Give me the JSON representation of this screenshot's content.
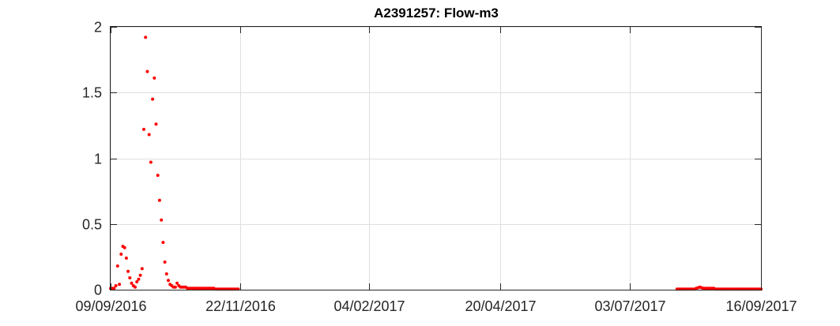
{
  "chart_data": {
    "type": "scatter",
    "title": "A2391257: Flow-m3",
    "xlabel": "",
    "ylabel": "",
    "x_axis_type": "date",
    "xlim": [
      "2016-09-09",
      "2017-09-16"
    ],
    "ylim": [
      0,
      2
    ],
    "x_ticks": [
      "09/09/2016",
      "22/11/2016",
      "04/02/2017",
      "20/04/2017",
      "03/07/2017",
      "16/09/2017"
    ],
    "x_tick_dates": [
      "2016-09-09",
      "2016-11-22",
      "2017-02-04",
      "2017-04-20",
      "2017-07-03",
      "2017-09-16"
    ],
    "y_ticks": [
      0,
      0.5,
      1,
      1.5,
      2
    ],
    "y_tick_labels": [
      "0",
      "0.5",
      "1",
      "1.5",
      "2"
    ],
    "grid": true,
    "marker_color": "#ff0000",
    "series": [
      {
        "points": [
          [
            "2016-09-09",
            0.01
          ],
          [
            "2016-09-10",
            0.01
          ],
          [
            "2016-09-11",
            0.01
          ],
          [
            "2016-09-12",
            0.03
          ],
          [
            "2016-09-13",
            0.18
          ],
          [
            "2016-09-14",
            0.04
          ],
          [
            "2016-09-15",
            0.27
          ],
          [
            "2016-09-16",
            0.33
          ],
          [
            "2016-09-17",
            0.32
          ],
          [
            "2016-09-18",
            0.24
          ],
          [
            "2016-09-19",
            0.14
          ],
          [
            "2016-09-20",
            0.09
          ],
          [
            "2016-09-21",
            0.05
          ],
          [
            "2016-09-22",
            0.03
          ],
          [
            "2016-09-23",
            0.02
          ],
          [
            "2016-09-24",
            0.06
          ],
          [
            "2016-09-25",
            0.08
          ],
          [
            "2016-09-26",
            0.11
          ],
          [
            "2016-09-27",
            0.16
          ],
          [
            "2016-09-28",
            1.22
          ],
          [
            "2016-09-29",
            1.92
          ],
          [
            "2016-09-30",
            1.66
          ],
          [
            "2016-10-01",
            1.18
          ],
          [
            "2016-10-02",
            0.97
          ],
          [
            "2016-10-03",
            1.45
          ],
          [
            "2016-10-04",
            1.61
          ],
          [
            "2016-10-05",
            1.26
          ],
          [
            "2016-10-06",
            0.87
          ],
          [
            "2016-10-07",
            0.68
          ],
          [
            "2016-10-08",
            0.53
          ],
          [
            "2016-10-09",
            0.36
          ],
          [
            "2016-10-10",
            0.21
          ],
          [
            "2016-10-11",
            0.12
          ],
          [
            "2016-10-12",
            0.07
          ],
          [
            "2016-10-13",
            0.04
          ],
          [
            "2016-10-14",
            0.03
          ],
          [
            "2016-10-15",
            0.02
          ],
          [
            "2016-10-16",
            0.02
          ],
          [
            "2016-10-17",
            0.05
          ],
          [
            "2016-10-18",
            0.03
          ],
          [
            "2016-10-19",
            0.02
          ],
          [
            "2016-10-20",
            0.02
          ],
          [
            "2016-10-21",
            0.02
          ],
          [
            "2016-10-22",
            0.02
          ],
          [
            "2016-10-23",
            0.01
          ],
          [
            "2016-10-24",
            0.01
          ],
          [
            "2016-10-25",
            0.01
          ],
          [
            "2016-10-26",
            0.01
          ],
          [
            "2016-10-27",
            0.01
          ],
          [
            "2016-10-28",
            0.01
          ],
          [
            "2016-10-29",
            0.01
          ],
          [
            "2016-10-30",
            0.01
          ],
          [
            "2016-10-31",
            0.01
          ],
          [
            "2016-11-01",
            0.01
          ],
          [
            "2016-11-02",
            0.01
          ],
          [
            "2016-11-03",
            0.01
          ],
          [
            "2016-11-04",
            0.01
          ],
          [
            "2016-11-05",
            0.01
          ],
          [
            "2016-11-06",
            0.01
          ],
          [
            "2016-11-07",
            0.01
          ],
          [
            "2016-11-08",
            0.005
          ],
          [
            "2016-11-09",
            0.005
          ],
          [
            "2016-11-10",
            0.005
          ],
          [
            "2016-11-11",
            0.005
          ],
          [
            "2016-11-12",
            0.005
          ],
          [
            "2016-11-13",
            0.005
          ],
          [
            "2016-11-14",
            0.005
          ],
          [
            "2016-11-15",
            0.005
          ],
          [
            "2016-11-16",
            0.005
          ],
          [
            "2016-11-17",
            0.005
          ],
          [
            "2016-11-18",
            0.005
          ],
          [
            "2016-11-19",
            0.005
          ],
          [
            "2016-11-20",
            0.005
          ],
          [
            "2016-11-21",
            0.005
          ],
          [
            "2017-07-30",
            0.005
          ],
          [
            "2017-07-31",
            0.005
          ],
          [
            "2017-08-01",
            0.005
          ],
          [
            "2017-08-02",
            0.005
          ],
          [
            "2017-08-03",
            0.005
          ],
          [
            "2017-08-04",
            0.005
          ],
          [
            "2017-08-05",
            0.005
          ],
          [
            "2017-08-06",
            0.005
          ],
          [
            "2017-08-07",
            0.005
          ],
          [
            "2017-08-08",
            0.005
          ],
          [
            "2017-08-09",
            0.005
          ],
          [
            "2017-08-10",
            0.01
          ],
          [
            "2017-08-11",
            0.015
          ],
          [
            "2017-08-12",
            0.02
          ],
          [
            "2017-08-13",
            0.015
          ],
          [
            "2017-08-14",
            0.01
          ],
          [
            "2017-08-15",
            0.01
          ],
          [
            "2017-08-16",
            0.01
          ],
          [
            "2017-08-17",
            0.01
          ],
          [
            "2017-08-18",
            0.01
          ],
          [
            "2017-08-19",
            0.01
          ],
          [
            "2017-08-20",
            0.01
          ],
          [
            "2017-08-21",
            0.005
          ],
          [
            "2017-08-22",
            0.005
          ],
          [
            "2017-08-23",
            0.005
          ],
          [
            "2017-08-24",
            0.005
          ],
          [
            "2017-08-25",
            0.005
          ],
          [
            "2017-08-26",
            0.005
          ],
          [
            "2017-08-27",
            0.005
          ],
          [
            "2017-08-28",
            0.005
          ],
          [
            "2017-08-29",
            0.005
          ],
          [
            "2017-08-30",
            0.005
          ],
          [
            "2017-08-31",
            0.005
          ],
          [
            "2017-09-01",
            0.005
          ],
          [
            "2017-09-02",
            0.005
          ],
          [
            "2017-09-03",
            0.005
          ],
          [
            "2017-09-04",
            0.005
          ],
          [
            "2017-09-05",
            0.005
          ],
          [
            "2017-09-06",
            0.005
          ],
          [
            "2017-09-07",
            0.005
          ],
          [
            "2017-09-08",
            0.005
          ],
          [
            "2017-09-09",
            0.005
          ],
          [
            "2017-09-10",
            0.005
          ],
          [
            "2017-09-11",
            0.005
          ],
          [
            "2017-09-12",
            0.005
          ],
          [
            "2017-09-13",
            0.005
          ],
          [
            "2017-09-14",
            0.005
          ],
          [
            "2017-09-15",
            0.005
          ],
          [
            "2017-09-16",
            0.005
          ]
        ]
      }
    ]
  }
}
